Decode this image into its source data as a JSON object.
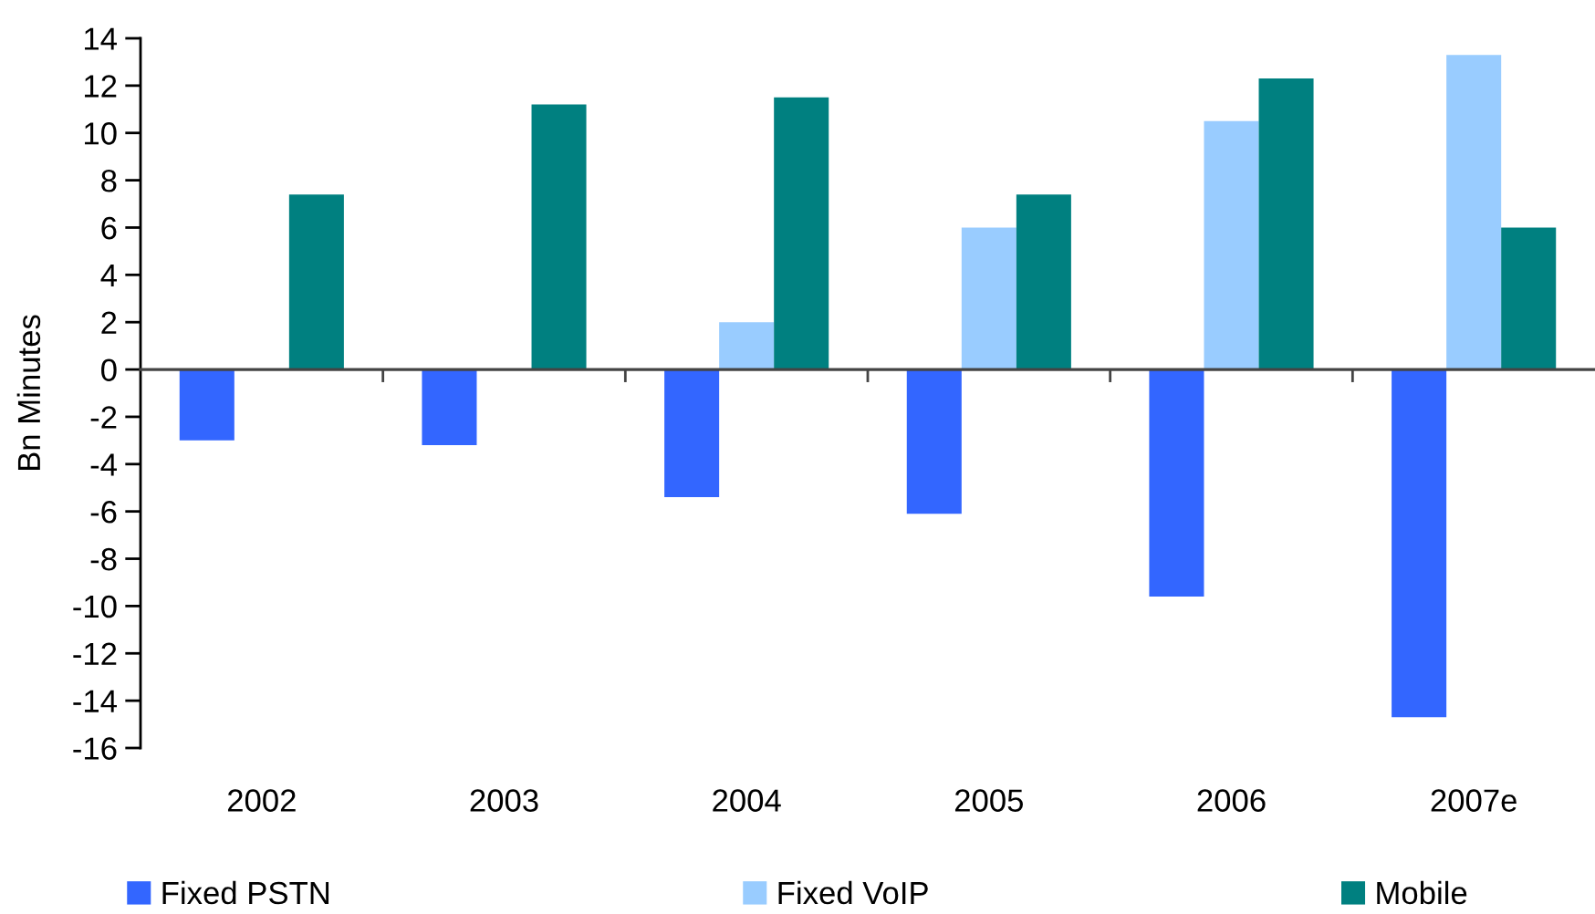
{
  "chart_data": {
    "type": "bar",
    "ylabel": "Bn Minutes",
    "categories": [
      "2002",
      "2003",
      "2004",
      "2005",
      "2006",
      "2007e"
    ],
    "series": [
      {
        "name": "Fixed PSTN",
        "color": "#3366ff",
        "values": [
          -3.0,
          -3.2,
          -5.4,
          -6.1,
          -9.6,
          -14.7
        ]
      },
      {
        "name": "Fixed VoIP",
        "color": "#99ccff",
        "values": [
          null,
          null,
          2.0,
          6.0,
          10.5,
          13.3
        ]
      },
      {
        "name": "Mobile",
        "color": "#008080",
        "values": [
          7.4,
          11.2,
          11.5,
          7.4,
          12.3,
          6.0
        ]
      }
    ],
    "ylim": [
      -16,
      14
    ],
    "yticks": [
      -16,
      -14,
      -12,
      -10,
      -8,
      -6,
      -4,
      -2,
      0,
      2,
      4,
      6,
      8,
      10,
      12,
      14
    ],
    "legend": "bottom"
  }
}
